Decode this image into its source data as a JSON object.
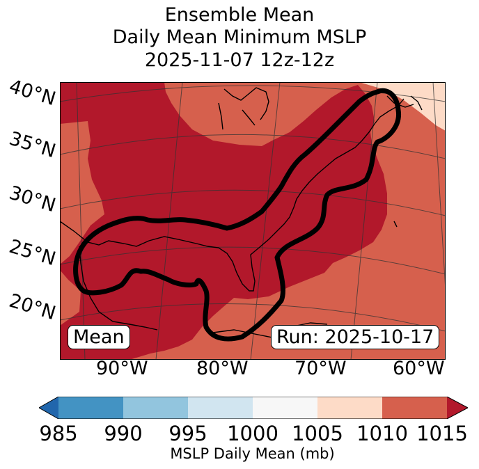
{
  "title": {
    "line1": "Ensemble Mean",
    "line2": "Daily Mean Minimum MSLP",
    "line3": "2025-11-07 12z-12z"
  },
  "lat_labels": [
    "40°N",
    "35°N",
    "30°N",
    "25°N",
    "20°N"
  ],
  "lon_labels": [
    "90°W",
    "80°W",
    "70°W",
    "60°W"
  ],
  "mean_label": "Mean",
  "run_label": "Run: 2025-10-17",
  "colorbar": {
    "label": "MSLP Daily Mean (mb)",
    "ticks": [
      "985",
      "990",
      "995",
      "1000",
      "1005",
      "1010",
      "1015"
    ],
    "colors": [
      "#4393c3",
      "#92c5de",
      "#d1e5f0",
      "#f7f7f7",
      "#fddbc7",
      "#d6604d"
    ],
    "under_color": "#2166ac",
    "over_color": "#b2182b"
  },
  "map_colors": {
    "ocean_low": "#b2182b",
    "mid": "#d6604d",
    "high": "#fddbc7",
    "outline": "#000000"
  }
}
